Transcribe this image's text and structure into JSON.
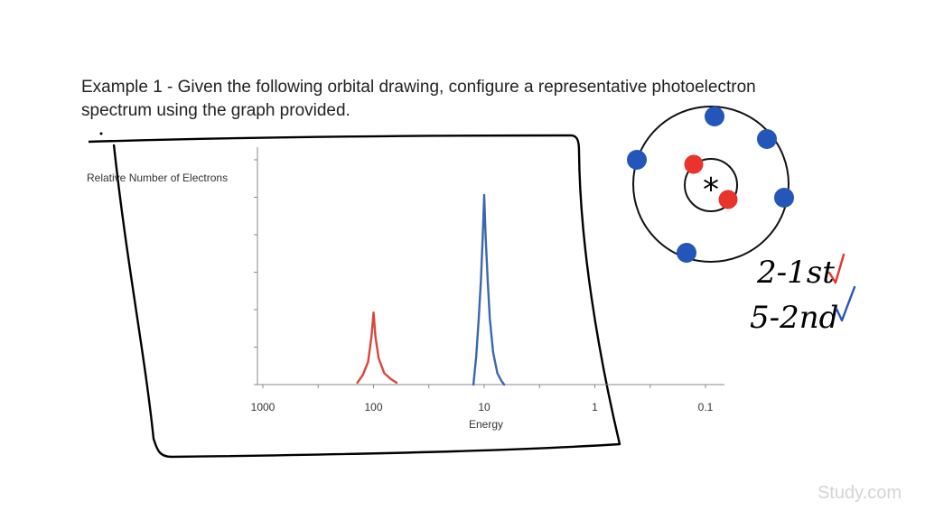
{
  "title": {
    "line1": "Example 1 - Given the following orbital drawing, configure a representative photoelectron",
    "line2": "spectrum using the graph provided."
  },
  "chart_data": {
    "type": "line",
    "title": "",
    "xlabel": "Energy",
    "ylabel": "Relative Number of Electrons",
    "x_scale": "log-reversed",
    "x_ticks": [
      1000,
      100,
      10,
      1,
      0.1
    ],
    "x_tick_labels": [
      "1000",
      "100",
      "10",
      "1",
      "0.1"
    ],
    "xlim": [
      1000,
      0.1
    ],
    "ylim": [
      0,
      1
    ],
    "grid": false,
    "series": [
      {
        "color": "#d9463c",
        "x": [
          140,
          125,
          112,
          104,
          100,
          96,
          90,
          80,
          70,
          62
        ],
        "y": [
          0.01,
          0.05,
          0.12,
          0.26,
          0.38,
          0.25,
          0.14,
          0.06,
          0.03,
          0.01
        ]
      },
      {
        "color": "#3b66b0",
        "x": [
          12.5,
          11.8,
          11.2,
          10.7,
          10.3,
          10,
          9.7,
          9.3,
          8.9,
          8.3,
          7.6,
          7,
          6.6
        ],
        "y": [
          0.0,
          0.15,
          0.35,
          0.55,
          0.78,
          1.0,
          0.78,
          0.55,
          0.35,
          0.17,
          0.06,
          0.02,
          0.0
        ]
      }
    ]
  },
  "orbital": {
    "nucleus_symbol": "*",
    "inner_color": "#e8342a",
    "outer_color": "#2356b8"
  },
  "notes": {
    "line1": "2-1st",
    "line2": "5-2nd",
    "check1_color": "#e8342a",
    "check2_color": "#2356b8"
  },
  "watermark": "Study.com"
}
